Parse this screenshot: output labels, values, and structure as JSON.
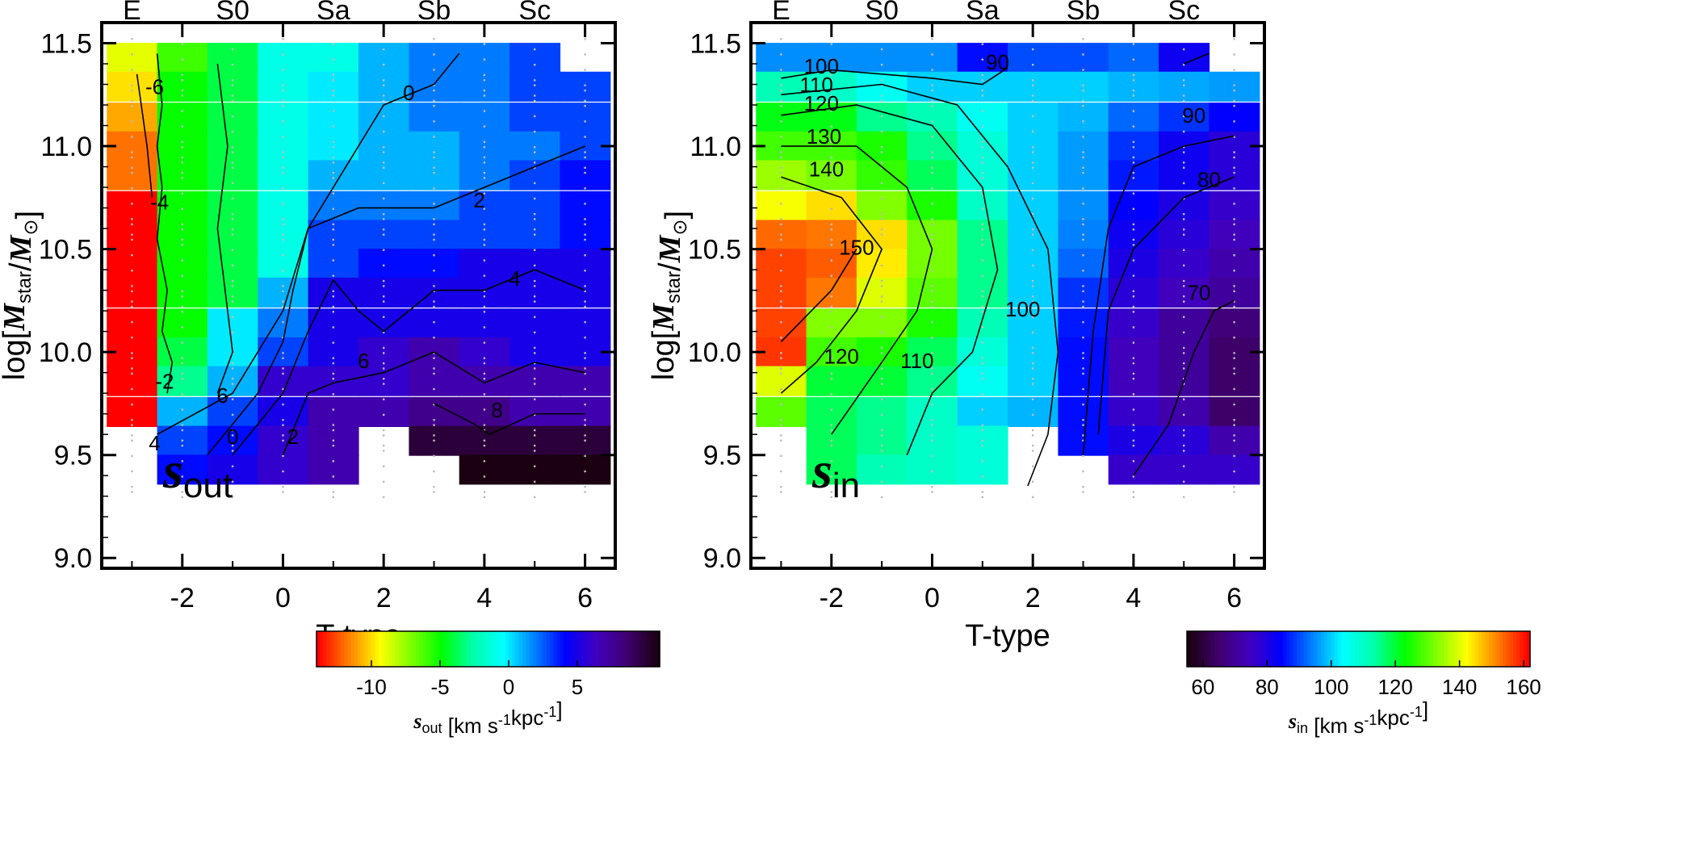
{
  "chart_data": [
    {
      "type": "heatmap",
      "panel_label": "s",
      "panel_label_sub": "out",
      "xlabel": "T-type",
      "ylabel_prefix": "log[",
      "ylabel_main": "M",
      "ylabel_sub": "star",
      "ylabel_slash": "/",
      "ylabel_main2": "M",
      "ylabel_sun": "⊙",
      "ylabel_suffix": "]",
      "xlim": [
        -3.6,
        6.6
      ],
      "ylim": [
        8.95,
        11.6
      ],
      "x_ticks": [
        "-2",
        "0",
        "2",
        "4",
        "6"
      ],
      "y_ticks": [
        "9.0",
        "9.5",
        "10.0",
        "10.5",
        "11.0",
        "11.5"
      ],
      "top_labels": [
        {
          "text": "E",
          "x": -3
        },
        {
          "text": "S0",
          "x": -1
        },
        {
          "text": "Sa",
          "x": 1
        },
        {
          "text": "Sb",
          "x": 3
        },
        {
          "text": "Sc",
          "x": 5
        }
      ],
      "x": [
        -3,
        -2,
        -1,
        0,
        1,
        2,
        3,
        4,
        5,
        6
      ],
      "y": [
        11.43,
        11.29,
        11.14,
        11.0,
        10.86,
        10.71,
        10.57,
        10.43,
        10.29,
        10.14,
        10.0,
        9.86,
        9.71,
        9.57,
        9.43
      ],
      "z": [
        [
          -9,
          -6,
          -4,
          -1,
          -1,
          1,
          2,
          2,
          3,
          null
        ],
        [
          -10,
          -5,
          -4,
          -1,
          0,
          1,
          2,
          2,
          3,
          3
        ],
        [
          -11,
          -5,
          -4,
          -1,
          0,
          1,
          2,
          2,
          3,
          3
        ],
        [
          -12,
          -5,
          -4,
          -1,
          0,
          1,
          1,
          2,
          2,
          3
        ],
        [
          -12,
          -5,
          -4,
          -1,
          1,
          1,
          1,
          2,
          3,
          4
        ],
        [
          -14,
          -5,
          -4,
          -1,
          2,
          2,
          2,
          3,
          3,
          4
        ],
        [
          -14,
          -5,
          -4,
          -1,
          3,
          3,
          3,
          3,
          3,
          4
        ],
        [
          -14,
          -5,
          -4,
          -1,
          3,
          4,
          4,
          5,
          5,
          5
        ],
        [
          -14,
          -5,
          -4,
          1,
          5,
          5,
          5,
          5,
          5,
          5
        ],
        [
          -14,
          -5,
          0,
          2,
          5,
          5,
          5,
          5,
          5,
          5
        ],
        [
          -14,
          -4,
          0,
          3,
          5,
          6,
          7,
          6,
          5,
          5
        ],
        [
          -14,
          -3,
          1,
          6,
          6,
          6,
          7,
          7,
          7,
          7
        ],
        [
          -14,
          1,
          3,
          5,
          7,
          7,
          8,
          8,
          7,
          7
        ],
        [
          null,
          3,
          4,
          6,
          7,
          null,
          10,
          10,
          10,
          10
        ],
        [
          null,
          4,
          5,
          6,
          7,
          null,
          null,
          11,
          11,
          11
        ]
      ],
      "colorbar": {
        "min": -14,
        "max": 11,
        "ticks": [
          "-10",
          "-5",
          "0",
          "5"
        ],
        "tick_values": [
          -10,
          -5,
          0,
          5
        ],
        "label_main": "s",
        "label_sub": "out",
        "label_units": "[km s",
        "label_exp": "-1",
        "label_units2": "kpc",
        "label_exp2": "-1",
        "label_close": "]",
        "colors": [
          "#ff0000",
          "#ff8000",
          "#ffff00",
          "#80ff00",
          "#00ff00",
          "#00ffaa",
          "#00ffff",
          "#0080ff",
          "#0000ff",
          "#4000c0",
          "#400070",
          "#1a0010"
        ]
      },
      "contour_labels": [
        "-6",
        "-4",
        "-2",
        "0",
        "2",
        "4",
        "6",
        "0",
        "2",
        "4",
        "6",
        "8"
      ]
    },
    {
      "type": "heatmap",
      "panel_label": "s",
      "panel_label_sub": "in",
      "xlabel": "T-type",
      "ylabel_prefix": "log[",
      "ylabel_main": "M",
      "ylabel_sub": "star",
      "ylabel_slash": "/",
      "ylabel_main2": "M",
      "ylabel_sun": "⊙",
      "ylabel_suffix": "]",
      "xlim": [
        -3.6,
        6.6
      ],
      "ylim": [
        8.95,
        11.6
      ],
      "x_ticks": [
        "-2",
        "0",
        "2",
        "4",
        "6"
      ],
      "y_ticks": [
        "9.0",
        "9.5",
        "10.0",
        "10.5",
        "11.0",
        "11.5"
      ],
      "top_labels": [
        {
          "text": "E",
          "x": -3
        },
        {
          "text": "S0",
          "x": -1
        },
        {
          "text": "Sa",
          "x": 1
        },
        {
          "text": "Sb",
          "x": 3
        },
        {
          "text": "Sc",
          "x": 5
        }
      ],
      "x": [
        -3,
        -2,
        -1,
        0,
        1,
        2,
        3,
        4,
        5,
        6
      ],
      "y": [
        11.43,
        11.29,
        11.14,
        11.0,
        10.86,
        10.71,
        10.57,
        10.43,
        10.29,
        10.14,
        10.0,
        9.86,
        9.71,
        9.57,
        9.43
      ],
      "z": [
        [
          95,
          95,
          95,
          95,
          85,
          90,
          90,
          92,
          82,
          null
        ],
        [
          112,
          110,
          105,
          100,
          100,
          100,
          100,
          98,
          97,
          96
        ],
        [
          122,
          122,
          115,
          112,
          105,
          100,
          98,
          92,
          88,
          84
        ],
        [
          128,
          128,
          125,
          115,
          108,
          100,
          96,
          88,
          82,
          78
        ],
        [
          135,
          132,
          127,
          118,
          108,
          100,
          96,
          86,
          82,
          78
        ],
        [
          142,
          145,
          133,
          125,
          110,
          100,
          95,
          84,
          80,
          76
        ],
        [
          154,
          153,
          145,
          132,
          115,
          100,
          94,
          82,
          78,
          74
        ],
        [
          157,
          155,
          144,
          132,
          115,
          100,
          92,
          80,
          76,
          72
        ],
        [
          157,
          153,
          140,
          130,
          115,
          100,
          88,
          78,
          74,
          70
        ],
        [
          157,
          133,
          133,
          125,
          112,
          100,
          86,
          76,
          70,
          66
        ],
        [
          158,
          128,
          125,
          118,
          108,
          100,
          85,
          74,
          70,
          64
        ],
        [
          140,
          120,
          120,
          115,
          105,
          100,
          85,
          74,
          70,
          64
        ],
        [
          130,
          118,
          115,
          110,
          100,
          98,
          85,
          76,
          72,
          64
        ],
        [
          null,
          118,
          115,
          110,
          108,
          null,
          85,
          80,
          78,
          72
        ],
        [
          null,
          118,
          112,
          110,
          108,
          null,
          null,
          76,
          76,
          76
        ]
      ],
      "colorbar": {
        "min": 55,
        "max": 162,
        "ticks": [
          "60",
          "80",
          "100",
          "120",
          "140",
          "160"
        ],
        "tick_values": [
          60,
          80,
          100,
          120,
          140,
          160
        ],
        "label_main": "s",
        "label_sub": "in",
        "label_units": "[km s",
        "label_exp": "-1",
        "label_units2": "kpc",
        "label_exp2": "-1",
        "label_close": "]",
        "colors": [
          "#1a0010",
          "#400070",
          "#4000c0",
          "#0000ff",
          "#0080ff",
          "#00ffff",
          "#00ffaa",
          "#00ff00",
          "#80ff00",
          "#ffff00",
          "#ff8000",
          "#ff0000"
        ]
      },
      "contour_labels": [
        "100",
        "110",
        "120",
        "130",
        "140",
        "150",
        "120",
        "110",
        "100",
        "90",
        "90",
        "80",
        "70"
      ]
    }
  ]
}
